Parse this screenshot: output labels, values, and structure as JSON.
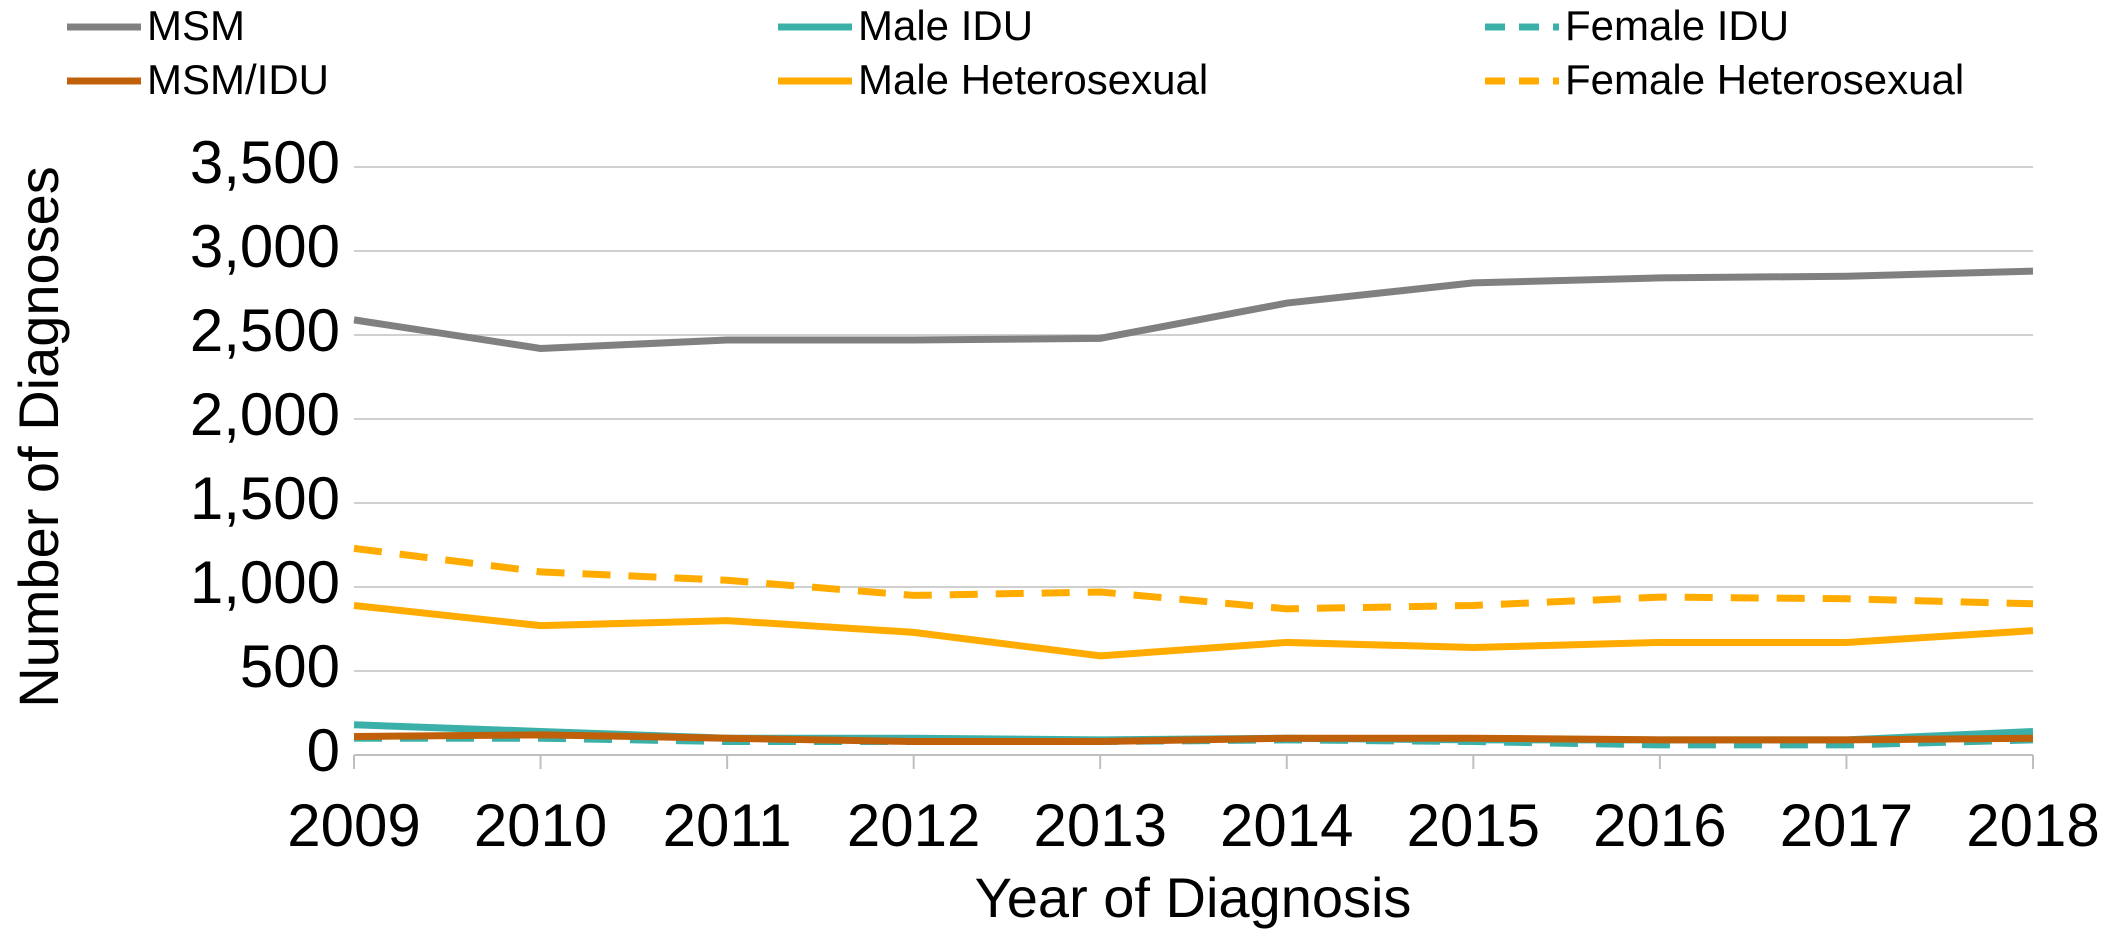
{
  "chart_data": {
    "type": "line",
    "x_label": "Year of Diagnosis",
    "y_label": "Number of Diagnoses",
    "categories": [
      "2009",
      "2010",
      "2011",
      "2012",
      "2013",
      "2014",
      "2015",
      "2016",
      "2017",
      "2018"
    ],
    "series": [
      {
        "name": "MSM",
        "color": "#808080",
        "line_style": "solid",
        "values": [
          2590,
          2420,
          2470,
          2470,
          2480,
          2690,
          2810,
          2840,
          2850,
          2880
        ]
      },
      {
        "name": "Male IDU",
        "color": "#3bb0a8",
        "line_style": "solid",
        "values": [
          180,
          140,
          100,
          100,
          90,
          100,
          90,
          90,
          90,
          140
        ]
      },
      {
        "name": "Female IDU",
        "color": "#3bb0a8",
        "line_style": "dashed",
        "values": [
          100,
          100,
          80,
          80,
          80,
          90,
          80,
          60,
          60,
          90
        ]
      },
      {
        "name": "MSM/IDU",
        "color": "#c0600a",
        "line_style": "solid",
        "values": [
          110,
          120,
          100,
          80,
          80,
          100,
          100,
          90,
          90,
          100
        ]
      },
      {
        "name": "Male Heterosexual",
        "color": "#ffab00",
        "line_style": "solid",
        "values": [
          890,
          770,
          800,
          730,
          590,
          670,
          640,
          670,
          670,
          740
        ]
      },
      {
        "name": "Female Heterosexual",
        "color": "#ffab00",
        "line_style": "dashed",
        "values": [
          1230,
          1090,
          1040,
          950,
          970,
          870,
          890,
          940,
          930,
          900
        ]
      }
    ],
    "ylim": [
      0,
      3500
    ],
    "yticks": [
      0,
      500,
      {
        "value": 1000,
        "label": "1,000"
      },
      {
        "value": 1500,
        "label": "1,500"
      },
      {
        "value": 2000,
        "label": "2,000"
      },
      {
        "value": 2500,
        "label": "2,500"
      },
      {
        "value": 3000,
        "label": "3,000"
      },
      {
        "value": 3500,
        "label": "3,500"
      }
    ],
    "grid": true,
    "legend": "top"
  }
}
